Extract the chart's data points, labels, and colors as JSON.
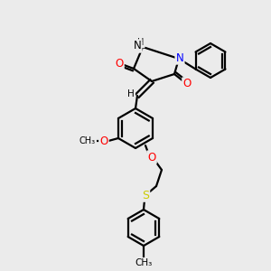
{
  "background_color": "#ebebeb",
  "bond_color": "#000000",
  "atom_colors": {
    "O": "#ff0000",
    "N": "#0000ff",
    "S": "#cccc00",
    "C": "#000000",
    "H": "#000000"
  },
  "title": "",
  "figsize": [
    3.0,
    3.0
  ],
  "dpi": 100
}
